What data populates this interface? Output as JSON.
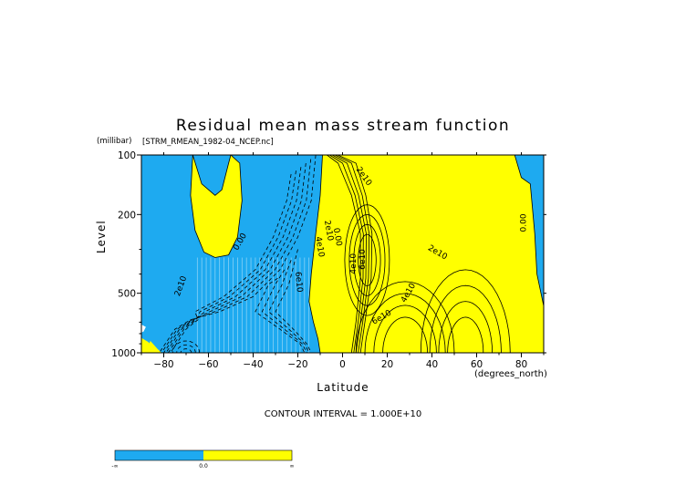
{
  "chart_data": {
    "type": "contour",
    "title": "Residual mean mass stream function",
    "source": "[STRM_RMEAN_1982-04_NCEP.nc]",
    "xlabel": "Latitude",
    "xunits": "(degrees_north)",
    "ylabel": "Level",
    "yunits": "(millibar)",
    "xlim": [
      -90,
      90
    ],
    "ylim": [
      1000,
      100
    ],
    "yscale": "log",
    "xticks": [
      -80,
      -60,
      -40,
      -20,
      0,
      20,
      40,
      60,
      80
    ],
    "yticks": [
      100,
      200,
      500,
      1000
    ],
    "contour_interval_text": "CONTOUR INTERVAL = 1.000E+10",
    "contour_labels": [
      "0.00",
      "2e10",
      "4e10",
      "6e10"
    ],
    "colors": {
      "negative": "#1eaaf0",
      "positive": "#ffff00"
    },
    "colorbar": {
      "labels": [
        "-∞",
        "0.0",
        "∞"
      ]
    }
  }
}
